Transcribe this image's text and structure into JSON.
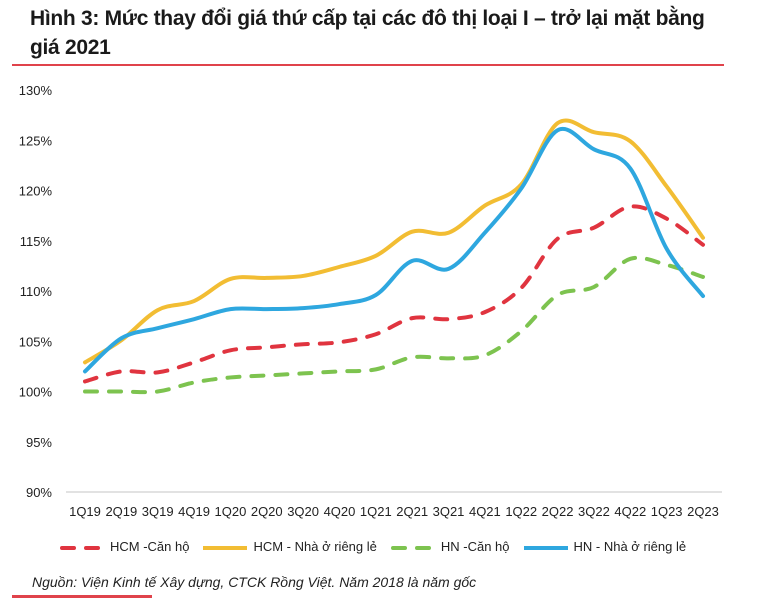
{
  "title": "Hình 3: Mức thay đổi giá thứ cấp tại các đô thị loại I – trở lại mặt bằng giá 2021",
  "source": "Nguồn: Viện Kinh tế Xây dựng, CTCK Rồng Việt. Năm 2018 là năm gốc",
  "chart_data": {
    "type": "line",
    "title": "Hình 3: Mức thay đổi giá thứ cấp tại các đô thị loại I – trở lại mặt bằng giá 2021",
    "xlabel": "",
    "ylabel": "",
    "ylim": [
      90,
      130
    ],
    "yticks": [
      90,
      95,
      100,
      105,
      110,
      115,
      120,
      125,
      130
    ],
    "ytick_labels": [
      "90%",
      "95%",
      "100%",
      "105%",
      "110%",
      "115%",
      "120%",
      "125%",
      "130%"
    ],
    "grid": false,
    "legend_position": "bottom",
    "categories": [
      "1Q19",
      "2Q19",
      "3Q19",
      "4Q19",
      "1Q20",
      "2Q20",
      "3Q20",
      "4Q20",
      "1Q21",
      "2Q21",
      "3Q21",
      "4Q21",
      "1Q22",
      "2Q22",
      "3Q22",
      "4Q22",
      "1Q23",
      "2Q23"
    ],
    "series": [
      {
        "name": "HCM -Căn hộ",
        "color": "#e0343f",
        "dashed": true,
        "values": [
          101.0,
          102.0,
          101.9,
          102.9,
          104.1,
          104.4,
          104.7,
          104.9,
          105.7,
          107.3,
          107.2,
          107.9,
          110.3,
          115.2,
          116.3,
          118.4,
          117.2,
          114.6
        ]
      },
      {
        "name": "HCM - Nhà ở riêng lẻ",
        "color": "#f2bd33",
        "dashed": false,
        "values": [
          102.9,
          105.1,
          108.1,
          109.0,
          111.2,
          111.3,
          111.5,
          112.4,
          113.5,
          115.9,
          115.8,
          118.5,
          120.6,
          126.7,
          125.8,
          124.9,
          120.4,
          115.3
        ]
      },
      {
        "name": "HN -Căn hộ",
        "color": "#7dc34f",
        "dashed": true,
        "values": [
          100.0,
          100.0,
          100.0,
          100.9,
          101.4,
          101.6,
          101.8,
          102.0,
          102.2,
          103.4,
          103.3,
          103.6,
          106.0,
          109.6,
          110.4,
          113.2,
          112.6,
          111.4
        ]
      },
      {
        "name": "HN - Nhà ở riêng lẻ",
        "color": "#2ea7df",
        "dashed": false,
        "values": [
          102.0,
          105.3,
          106.3,
          107.2,
          108.2,
          108.2,
          108.3,
          108.7,
          109.6,
          113.0,
          112.2,
          115.8,
          120.2,
          126.0,
          124.1,
          122.2,
          114.2,
          109.5
        ]
      }
    ]
  }
}
